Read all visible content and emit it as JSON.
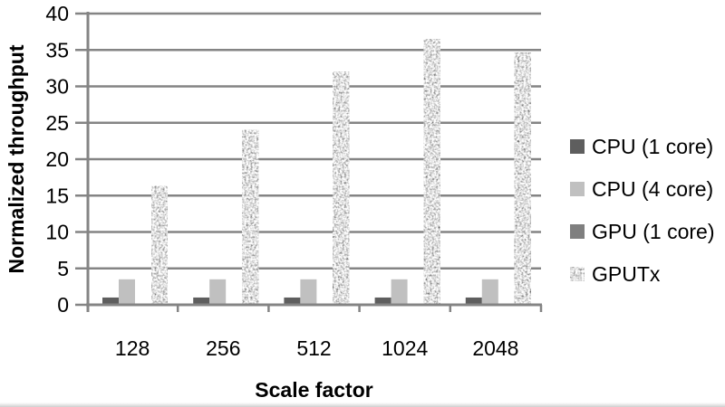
{
  "chart_data": {
    "type": "bar",
    "title": "",
    "xlabel": "Scale factor",
    "ylabel": "Normalized throughput",
    "categories": [
      "128",
      "256",
      "512",
      "1024",
      "2048"
    ],
    "series": [
      {
        "name": "CPU (1 core)",
        "color": "#5e5e5e",
        "texture": "solid",
        "values": [
          1,
          1,
          1,
          1,
          1
        ]
      },
      {
        "name": "CPU (4 core)",
        "color": "#c0c0c0",
        "texture": "solid",
        "values": [
          3.5,
          3.5,
          3.5,
          3.5,
          3.5
        ]
      },
      {
        "name": "GPU (1 core)",
        "color": "#7f7f7f",
        "texture": "solid",
        "values": [
          0.1,
          0.1,
          0.1,
          0.1,
          0.1
        ]
      },
      {
        "name": "GPUTx",
        "color": "#c9c9c9",
        "texture": "speckle",
        "values": [
          16.3,
          24,
          32,
          36.5,
          34.6
        ]
      }
    ],
    "ylim": [
      0,
      40
    ],
    "ytick_step": 5,
    "grid": "horizontal",
    "legend_position": "right",
    "colors": {
      "axis": "#848484",
      "gridline": "#848484",
      "text": "#000000"
    }
  }
}
